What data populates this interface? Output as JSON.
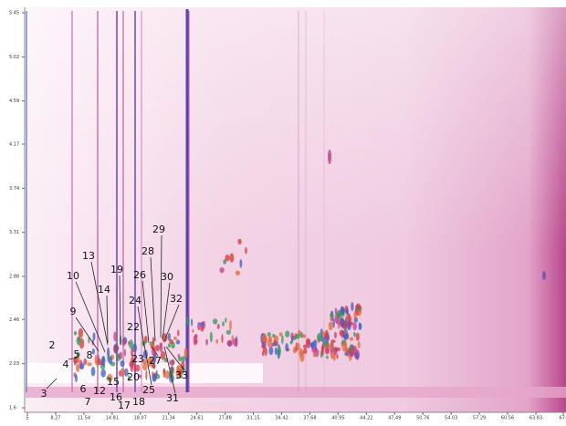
{
  "chart_data": {
    "type": "heatmap",
    "xlim": [
      5,
      67
    ],
    "xticks": [
      5,
      8.27,
      11.54,
      14.81,
      18.07,
      21.34,
      24.61,
      27.88,
      31.15,
      34.42,
      37.68,
      40.95,
      44.22,
      47.49,
      50.76,
      54.03,
      57.29,
      60.56,
      63.83,
      67
    ],
    "ylim": [
      1.6,
      5.45
    ],
    "yticks": [
      1.6,
      2.03,
      2.46,
      2.88,
      3.31,
      3.74,
      4.17,
      4.59,
      5.02,
      5.45
    ],
    "annotations": [
      "2",
      "3",
      "4",
      "5",
      "6",
      "7",
      "8",
      "9",
      "10",
      "12",
      "13",
      "14",
      "15",
      "16",
      "17",
      "18",
      "19",
      "20",
      "22",
      "23",
      "24",
      "25",
      "26",
      "27",
      "28",
      "29",
      "30",
      "31",
      "32",
      "33"
    ]
  }
}
